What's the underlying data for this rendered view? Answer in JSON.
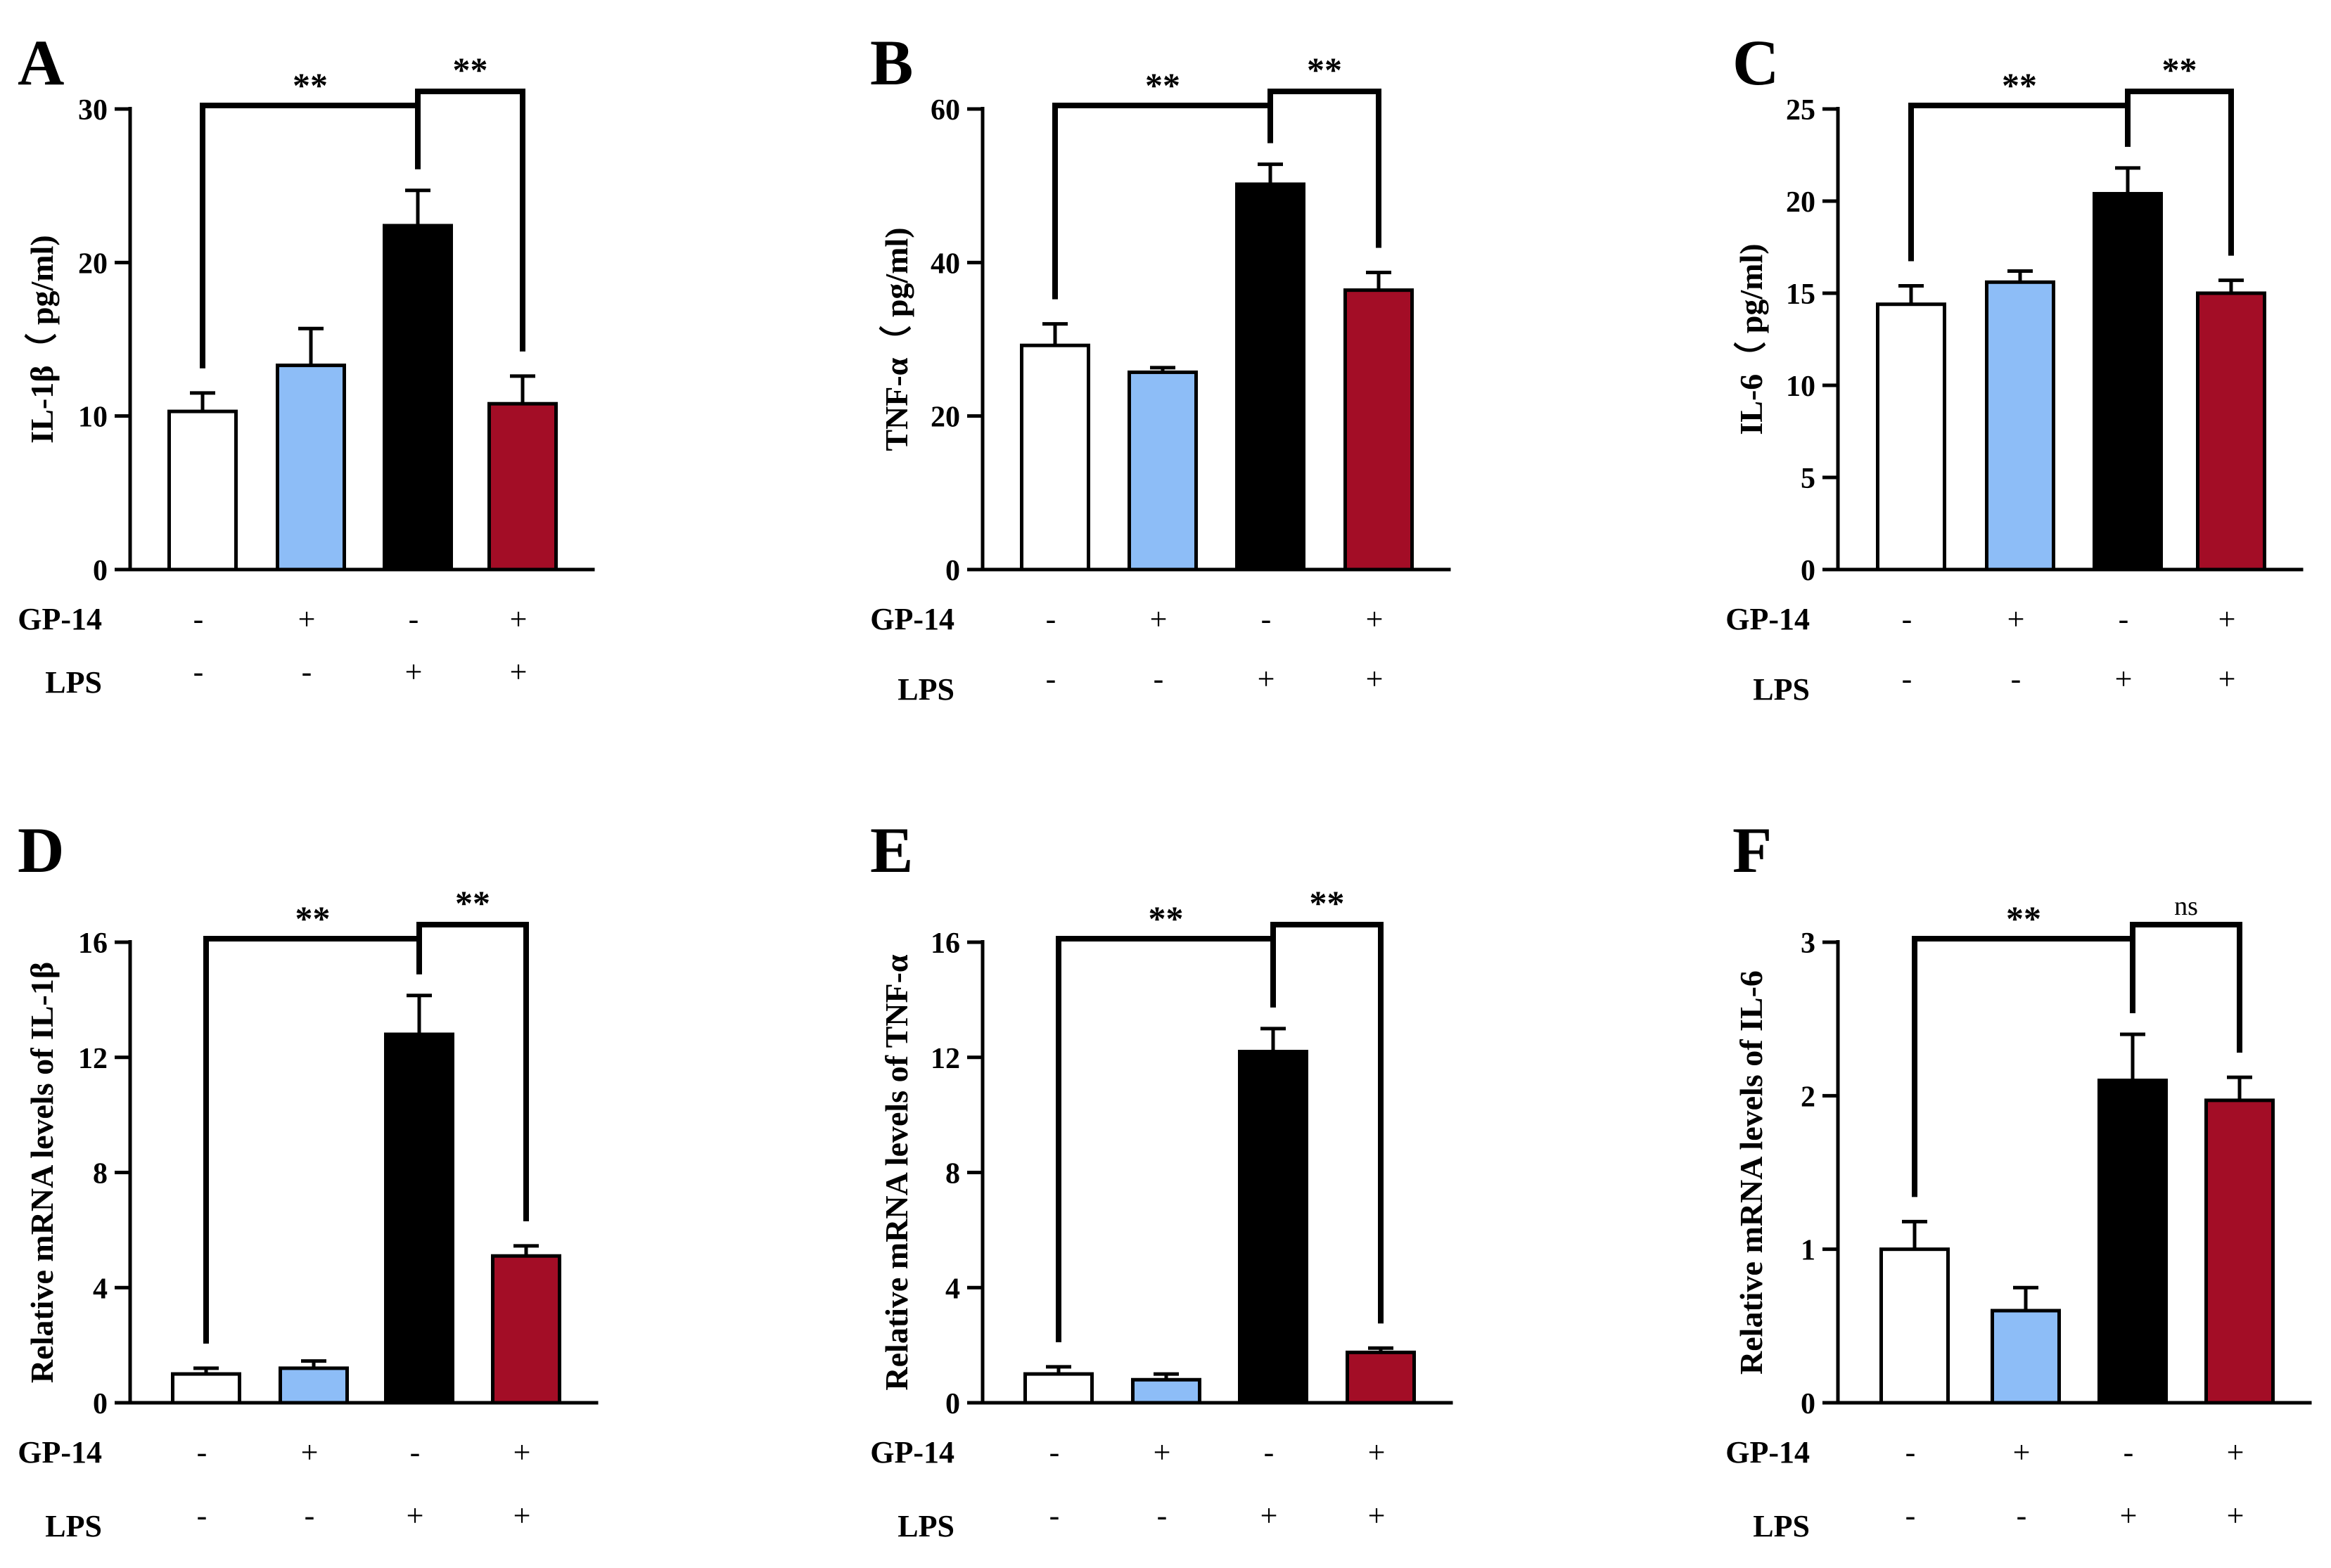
{
  "colors": {
    "control": "#ffffff",
    "gp14": "#8dbdf7",
    "lps": "#000000",
    "gp14_lps": "#a30d26"
  },
  "treatment_rows": {
    "gp14_label": "GP-14",
    "lps_label": "LPS",
    "gp14": [
      "-",
      "+",
      "-",
      "+"
    ],
    "lps": [
      "-",
      "-",
      "+",
      "+"
    ]
  },
  "chart_data": [
    {
      "panel": "A",
      "type": "bar",
      "ylabel": "IL-1β（ pg/ml)",
      "ylim": [
        0,
        30
      ],
      "yticks": [
        0,
        10,
        20,
        30
      ],
      "values": [
        10.3,
        13.3,
        22.4,
        10.8
      ],
      "errors": [
        1.2,
        2.4,
        2.3,
        1.8
      ],
      "significance": [
        {
          "from": 0,
          "to": 2,
          "label": "**"
        },
        {
          "from": 2,
          "to": 3,
          "label": "**"
        }
      ]
    },
    {
      "panel": "B",
      "type": "bar",
      "ylabel": "TNF-α（ pg/ml)",
      "ylim": [
        0,
        60
      ],
      "yticks": [
        0,
        20,
        40,
        60
      ],
      "values": [
        29.2,
        25.7,
        50.2,
        36.4
      ],
      "errors": [
        2.8,
        0.6,
        2.6,
        2.3
      ],
      "significance": [
        {
          "from": 0,
          "to": 2,
          "label": "**"
        },
        {
          "from": 2,
          "to": 3,
          "label": "**"
        }
      ]
    },
    {
      "panel": "C",
      "type": "bar",
      "ylabel": "IL-6（ pg/ml)",
      "ylim": [
        0,
        25
      ],
      "yticks": [
        0,
        5,
        10,
        15,
        20,
        25
      ],
      "values": [
        14.4,
        15.6,
        20.4,
        15.0
      ],
      "errors": [
        1.0,
        0.6,
        1.4,
        0.7
      ],
      "significance": [
        {
          "from": 0,
          "to": 2,
          "label": "**"
        },
        {
          "from": 2,
          "to": 3,
          "label": "**"
        }
      ]
    },
    {
      "panel": "D",
      "type": "bar",
      "ylabel": "Relative mRNA levels of  IL-1β",
      "ylim": [
        0,
        16
      ],
      "yticks": [
        0,
        4,
        8,
        12,
        16
      ],
      "values": [
        1.0,
        1.2,
        12.8,
        5.1
      ],
      "errors": [
        0.2,
        0.25,
        1.35,
        0.35
      ],
      "significance": [
        {
          "from": 0,
          "to": 2,
          "label": "**"
        },
        {
          "from": 2,
          "to": 3,
          "label": "**"
        }
      ]
    },
    {
      "panel": "E",
      "type": "bar",
      "ylabel": "Relative mRNA levels of  TNF-α",
      "ylim": [
        0,
        16
      ],
      "yticks": [
        0,
        4,
        8,
        12,
        16
      ],
      "values": [
        1.0,
        0.8,
        12.2,
        1.75
      ],
      "errors": [
        0.25,
        0.2,
        0.8,
        0.15
      ],
      "significance": [
        {
          "from": 0,
          "to": 2,
          "label": "**"
        },
        {
          "from": 2,
          "to": 3,
          "label": "**"
        }
      ]
    },
    {
      "panel": "F",
      "type": "bar",
      "ylabel": "Relative mRNA levels of  IL-6",
      "ylim": [
        0,
        3
      ],
      "yticks": [
        0,
        1,
        2,
        3
      ],
      "values": [
        1.0,
        0.6,
        2.1,
        1.97
      ],
      "errors": [
        0.18,
        0.15,
        0.3,
        0.15
      ],
      "significance": [
        {
          "from": 0,
          "to": 2,
          "label": "**"
        },
        {
          "from": 2,
          "to": 3,
          "label": "ns"
        }
      ]
    }
  ]
}
